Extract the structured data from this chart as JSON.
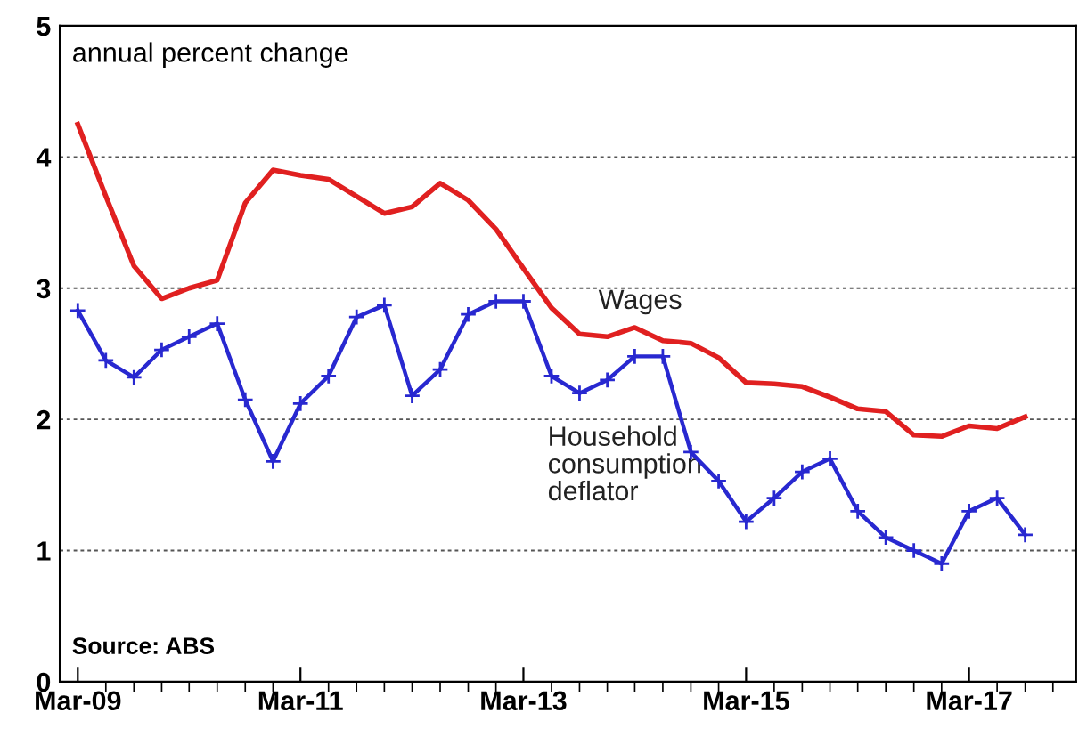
{
  "chart_data": {
    "type": "line",
    "ylabel": "annual percent change",
    "x": [
      "2009-03",
      "2009-06",
      "2009-09",
      "2009-12",
      "2010-03",
      "2010-06",
      "2010-09",
      "2010-12",
      "2011-03",
      "2011-06",
      "2011-09",
      "2011-12",
      "2012-03",
      "2012-06",
      "2012-09",
      "2012-12",
      "2013-03",
      "2013-06",
      "2013-09",
      "2013-12",
      "2014-03",
      "2014-06",
      "2014-09",
      "2014-12",
      "2015-03",
      "2015-06",
      "2015-09",
      "2015-12",
      "2016-03",
      "2016-06",
      "2016-09",
      "2016-12",
      "2017-03",
      "2017-06",
      "2017-09"
    ],
    "series": [
      {
        "name": "Wages",
        "color": "#e02020",
        "marker": "none",
        "values": [
          4.25,
          3.7,
          3.17,
          2.92,
          3.0,
          3.06,
          3.65,
          3.9,
          3.86,
          3.83,
          3.7,
          3.57,
          3.62,
          3.8,
          3.67,
          3.45,
          3.15,
          2.85,
          2.65,
          2.63,
          2.7,
          2.6,
          2.58,
          2.47,
          2.28,
          2.27,
          2.25,
          2.17,
          2.08,
          2.06,
          1.88,
          1.87,
          1.95,
          1.93,
          2.02
        ]
      },
      {
        "name": "Household consumption deflator",
        "color": "#2828d0",
        "marker": "cross",
        "values": [
          2.83,
          2.45,
          2.32,
          2.53,
          2.63,
          2.73,
          2.15,
          1.68,
          2.12,
          2.33,
          2.78,
          2.87,
          2.18,
          2.38,
          2.8,
          2.9,
          2.9,
          2.33,
          2.2,
          2.3,
          2.48,
          2.48,
          1.75,
          1.53,
          1.22,
          1.4,
          1.6,
          1.7,
          1.3,
          1.1,
          1.0,
          0.9,
          1.3,
          1.4,
          1.12
        ]
      }
    ],
    "xlim": [
      "2009-01-15",
      "2018-03-01"
    ],
    "xticks": [
      {
        "value": "2009-03",
        "label": "Mar-09"
      },
      {
        "value": "2011-03",
        "label": "Mar-11"
      },
      {
        "value": "2013-03",
        "label": "Mar-13"
      },
      {
        "value": "2015-03",
        "label": "Mar-15"
      },
      {
        "value": "2017-03",
        "label": "Mar-17"
      }
    ],
    "ylim": [
      0,
      5
    ],
    "yticks": [
      0,
      1,
      2,
      3,
      4,
      5
    ],
    "grid": "y",
    "legend": false,
    "line_style": "solid",
    "annotations": [
      "Source: ABS"
    ]
  }
}
